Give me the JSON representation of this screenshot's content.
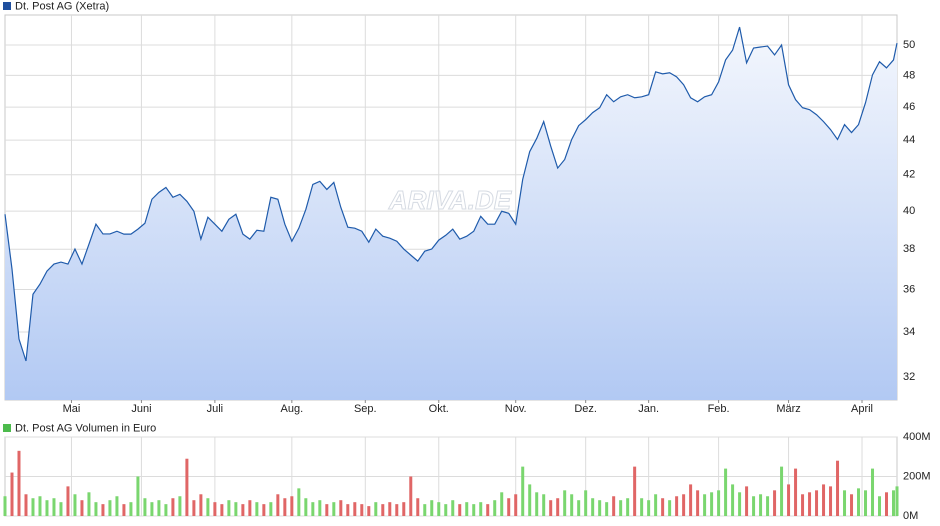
{
  "chart_data": [
    {
      "type": "area",
      "title": "Dt. Post AG (Xetra)",
      "color": "#1f5bab",
      "legend_color": "#1f4f9e",
      "log_scale": true,
      "grid": true,
      "watermark": "ARIVA.DE",
      "x": [
        0,
        2,
        4,
        6,
        8,
        10,
        12,
        14,
        16,
        18,
        20,
        22,
        24,
        26,
        28,
        30,
        32,
        34,
        36,
        38,
        40,
        42,
        44,
        46,
        48,
        50,
        52,
        54,
        56,
        58,
        60,
        62,
        64,
        66,
        68,
        70,
        72,
        74,
        76,
        78,
        80,
        82,
        84,
        86,
        88,
        90,
        92,
        94,
        96,
        98,
        100,
        102,
        104,
        106,
        108,
        110,
        112,
        114,
        116,
        118,
        120,
        122,
        124,
        126,
        128,
        130,
        132,
        134,
        136,
        138,
        140,
        142,
        144,
        146,
        148,
        150,
        152,
        154,
        156,
        158,
        160,
        162,
        164,
        166,
        168,
        170,
        172,
        174,
        176,
        178,
        180,
        182,
        184,
        186,
        188,
        190,
        192,
        194,
        196,
        198,
        200,
        202,
        204,
        206,
        208,
        210,
        212,
        214,
        216,
        218,
        220,
        222,
        224,
        226,
        228,
        230,
        232,
        234,
        236,
        238,
        240,
        242,
        244,
        246,
        248,
        250,
        252,
        254,
        255
      ],
      "values": [
        39.83,
        37.0,
        33.68,
        32.7,
        35.77,
        36.26,
        36.9,
        37.25,
        37.35,
        37.25,
        38.01,
        37.25,
        38.26,
        39.3,
        38.79,
        38.79,
        38.93,
        38.78,
        38.78,
        39.04,
        39.35,
        40.64,
        41.02,
        41.29,
        40.75,
        40.91,
        40.53,
        39.99,
        38.52,
        39.67,
        39.3,
        38.93,
        39.56,
        39.83,
        38.78,
        38.52,
        38.98,
        38.93,
        40.75,
        40.64,
        39.3,
        38.41,
        39.09,
        40.09,
        41.46,
        41.63,
        41.18,
        41.57,
        40.2,
        39.14,
        39.09,
        38.93,
        38.36,
        39.04,
        38.67,
        38.57,
        38.41,
        38.01,
        37.7,
        37.4,
        37.9,
        38.01,
        38.47,
        38.72,
        39.04,
        38.52,
        38.67,
        38.93,
        39.72,
        39.3,
        39.3,
        39.99,
        39.88,
        39.3,
        41.74,
        43.33,
        44.1,
        45.11,
        43.65,
        42.38,
        42.87,
        44.04,
        44.87,
        45.23,
        45.66,
        45.96,
        46.77,
        46.33,
        46.64,
        46.77,
        46.58,
        46.64,
        46.77,
        48.23,
        48.1,
        48.17,
        47.91,
        47.4,
        46.58,
        46.33,
        46.64,
        46.77,
        47.58,
        49.01,
        49.66,
        51.22,
        48.82,
        49.8,
        49.87,
        49.93,
        49.34,
        50.0,
        47.4,
        46.46,
        45.96,
        45.84,
        45.53,
        45.11,
        44.63,
        44.04,
        44.93,
        44.45,
        44.93,
        46.27,
        48.04,
        48.89,
        48.49,
        49.01,
        50.13
      ],
      "xlim": [
        0,
        255
      ],
      "xticks": [
        {
          "value": 19,
          "label": "Mai"
        },
        {
          "value": 39,
          "label": "Juni"
        },
        {
          "value": 60,
          "label": "Juli"
        },
        {
          "value": 82,
          "label": "Aug."
        },
        {
          "value": 103,
          "label": "Sep."
        },
        {
          "value": 124,
          "label": "Okt."
        },
        {
          "value": 146,
          "label": "Nov."
        },
        {
          "value": 166,
          "label": "Dez."
        },
        {
          "value": 184,
          "label": "Jan."
        },
        {
          "value": 204,
          "label": "Feb."
        },
        {
          "value": 224,
          "label": "März"
        },
        {
          "value": 245,
          "label": "April"
        }
      ],
      "ylim": [
        31.03,
        52.06
      ],
      "yticks": [
        32,
        34,
        36,
        38,
        40,
        42,
        44,
        46,
        48,
        50
      ]
    },
    {
      "type": "bar",
      "title": "Dt. Post AG Volumen in Euro",
      "legend_color": "#4cbb4c",
      "up_color": "#7ad66f",
      "down_color": "#e06666",
      "x": [
        0,
        2,
        4,
        6,
        8,
        10,
        12,
        14,
        16,
        18,
        20,
        22,
        24,
        26,
        28,
        30,
        32,
        34,
        36,
        38,
        40,
        42,
        44,
        46,
        48,
        50,
        52,
        54,
        56,
        58,
        60,
        62,
        64,
        66,
        68,
        70,
        72,
        74,
        76,
        78,
        80,
        82,
        84,
        86,
        88,
        90,
        92,
        94,
        96,
        98,
        100,
        102,
        104,
        106,
        108,
        110,
        112,
        114,
        116,
        118,
        120,
        122,
        124,
        126,
        128,
        130,
        132,
        134,
        136,
        138,
        140,
        142,
        144,
        146,
        148,
        150,
        152,
        154,
        156,
        158,
        160,
        162,
        164,
        166,
        168,
        170,
        172,
        174,
        176,
        178,
        180,
        182,
        184,
        186,
        188,
        190,
        192,
        194,
        196,
        198,
        200,
        202,
        204,
        206,
        208,
        210,
        212,
        214,
        216,
        218,
        220,
        222,
        224,
        226,
        228,
        230,
        232,
        234,
        236,
        238,
        240,
        242,
        244,
        246,
        248,
        250,
        252,
        254,
        255
      ],
      "values": [
        100,
        220,
        330,
        110,
        90,
        100,
        80,
        90,
        70,
        150,
        110,
        80,
        120,
        70,
        60,
        80,
        100,
        60,
        70,
        200,
        90,
        70,
        80,
        60,
        90,
        100,
        290,
        80,
        110,
        90,
        70,
        60,
        80,
        70,
        60,
        80,
        70,
        60,
        70,
        110,
        90,
        100,
        140,
        90,
        70,
        80,
        60,
        70,
        80,
        60,
        70,
        60,
        50,
        70,
        60,
        70,
        60,
        70,
        200,
        90,
        60,
        80,
        70,
        60,
        80,
        60,
        70,
        60,
        70,
        60,
        80,
        120,
        90,
        110,
        250,
        160,
        120,
        110,
        80,
        90,
        130,
        110,
        80,
        130,
        90,
        80,
        70,
        100,
        80,
        90,
        250,
        90,
        80,
        110,
        90,
        80,
        100,
        110,
        160,
        130,
        110,
        120,
        130,
        240,
        160,
        120,
        150,
        100,
        110,
        100,
        130,
        250,
        160,
        240,
        110,
        120,
        130,
        160,
        150,
        280,
        130,
        110,
        140,
        130,
        240,
        100,
        120,
        130,
        150
      ],
      "xlim": [
        0,
        255
      ],
      "ylim": [
        0,
        400
      ],
      "yticks": [
        {
          "value": 0,
          "label": "0M"
        },
        {
          "value": 200,
          "label": "200M"
        },
        {
          "value": 400,
          "label": "400M"
        }
      ]
    }
  ]
}
